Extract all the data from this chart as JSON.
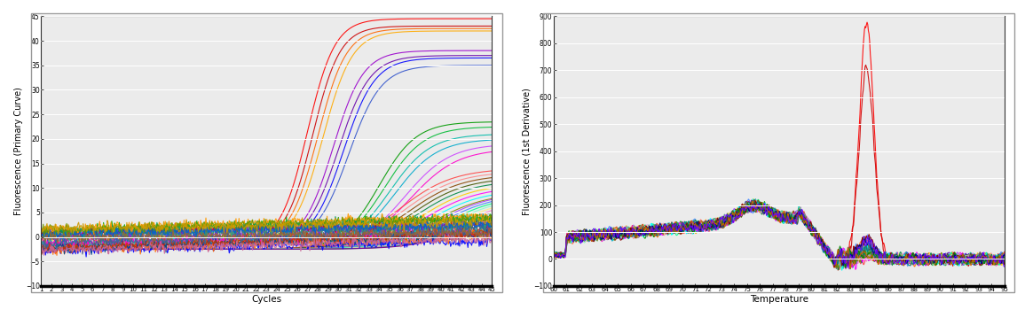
{
  "plot1": {
    "xlabel": "Cycles",
    "ylabel": "Fluorescence (Primary Curve)",
    "xlim": [
      1,
      45
    ],
    "ylim": [
      -10,
      45
    ],
    "xticks": [
      1,
      2,
      3,
      4,
      5,
      6,
      7,
      8,
      9,
      10,
      11,
      12,
      13,
      14,
      15,
      16,
      17,
      18,
      19,
      20,
      21,
      22,
      23,
      24,
      25,
      26,
      27,
      28,
      29,
      30,
      31,
      32,
      33,
      34,
      35,
      36,
      37,
      38,
      39,
      40,
      41,
      42,
      43,
      44,
      45
    ],
    "yticks": [
      -10,
      -5,
      0,
      5,
      10,
      15,
      20,
      25,
      30,
      35,
      40,
      45
    ],
    "bg_color": "#ebebeb"
  },
  "plot2": {
    "xlabel": "Temperature",
    "ylabel": "Fluorescence (1st Derivative)",
    "xlim": [
      60,
      95
    ],
    "ylim": [
      -100,
      900
    ],
    "xticks": [
      60,
      61,
      62,
      63,
      64,
      65,
      66,
      67,
      68,
      69,
      70,
      71,
      72,
      73,
      74,
      75,
      76,
      77,
      78,
      79,
      80,
      81,
      82,
      83,
      84,
      85,
      86,
      87,
      88,
      89,
      90,
      91,
      92,
      93,
      94,
      95
    ],
    "yticks": [
      -100,
      0,
      100,
      200,
      300,
      400,
      500,
      600,
      700,
      800,
      900
    ],
    "bg_color": "#ebebeb"
  }
}
